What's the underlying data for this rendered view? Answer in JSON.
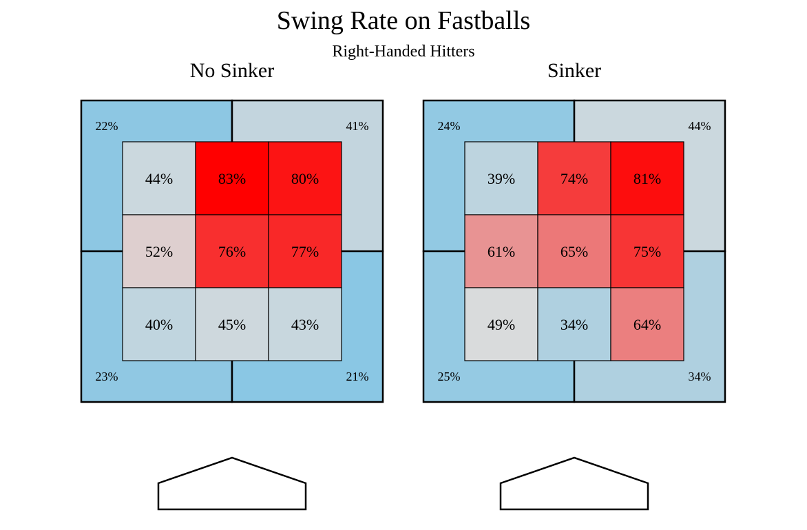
{
  "chart_data": {
    "type": "heatmap",
    "title": "Swing Rate on Fastballs",
    "subtitle": "Right-Handed Hitters",
    "value_format": "percent",
    "color_scale": {
      "low": "#87c6e4",
      "mid": "#dcdcdc",
      "high": "#ff0000"
    },
    "panels": [
      {
        "name": "No Sinker",
        "zone_grid": [
          [
            44,
            83,
            80
          ],
          [
            52,
            76,
            77
          ],
          [
            40,
            45,
            43
          ]
        ],
        "outside": {
          "top_left": 22,
          "top_right": 41,
          "bottom_left": 23,
          "bottom_right": 21
        }
      },
      {
        "name": "Sinker",
        "zone_grid": [
          [
            39,
            74,
            81
          ],
          [
            61,
            65,
            75
          ],
          [
            49,
            34,
            64
          ]
        ],
        "outside": {
          "top_left": 24,
          "top_right": 44,
          "bottom_left": 25,
          "bottom_right": 34
        }
      }
    ]
  }
}
